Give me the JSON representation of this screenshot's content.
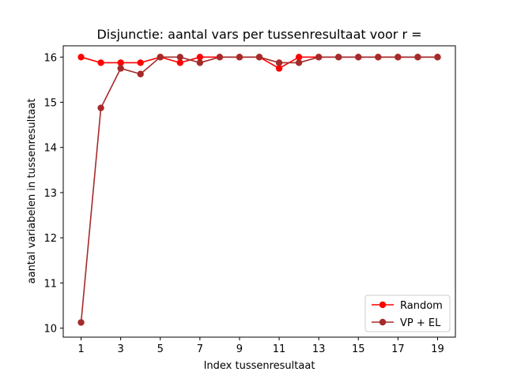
{
  "chart_data": {
    "type": "line",
    "title": "Disjunctie: aantal vars per tussenresultaat voor r =",
    "xlabel": "Index tussenresultaat",
    "ylabel": "aantal variabelen in tussenresultaat",
    "xlim": [
      0.1,
      19.9
    ],
    "ylim": [
      9.8,
      16.25
    ],
    "xticks": [
      1,
      3,
      5,
      7,
      9,
      11,
      13,
      15,
      17,
      19
    ],
    "yticks": [
      10,
      11,
      12,
      13,
      14,
      15,
      16
    ],
    "legend_position": "lower-right",
    "x": [
      1,
      2,
      3,
      4,
      5,
      6,
      7,
      8,
      9,
      10,
      11,
      12,
      13,
      14,
      15,
      16,
      17,
      18,
      19
    ],
    "series": [
      {
        "name": "Random",
        "color": "#ff0000",
        "values": [
          16.0,
          15.875,
          15.875,
          15.875,
          16.0,
          15.875,
          16.0,
          16.0,
          16.0,
          16.0,
          15.75,
          16.0,
          16.0,
          16.0,
          16.0,
          16.0,
          16.0,
          16.0,
          16.0
        ]
      },
      {
        "name": "VP + EL",
        "color": "#a52a2a",
        "values": [
          10.125,
          14.875,
          15.75,
          15.625,
          16.0,
          16.0,
          15.875,
          16.0,
          16.0,
          16.0,
          15.875,
          15.875,
          16.0,
          16.0,
          16.0,
          16.0,
          16.0,
          16.0,
          16.0
        ]
      }
    ]
  }
}
